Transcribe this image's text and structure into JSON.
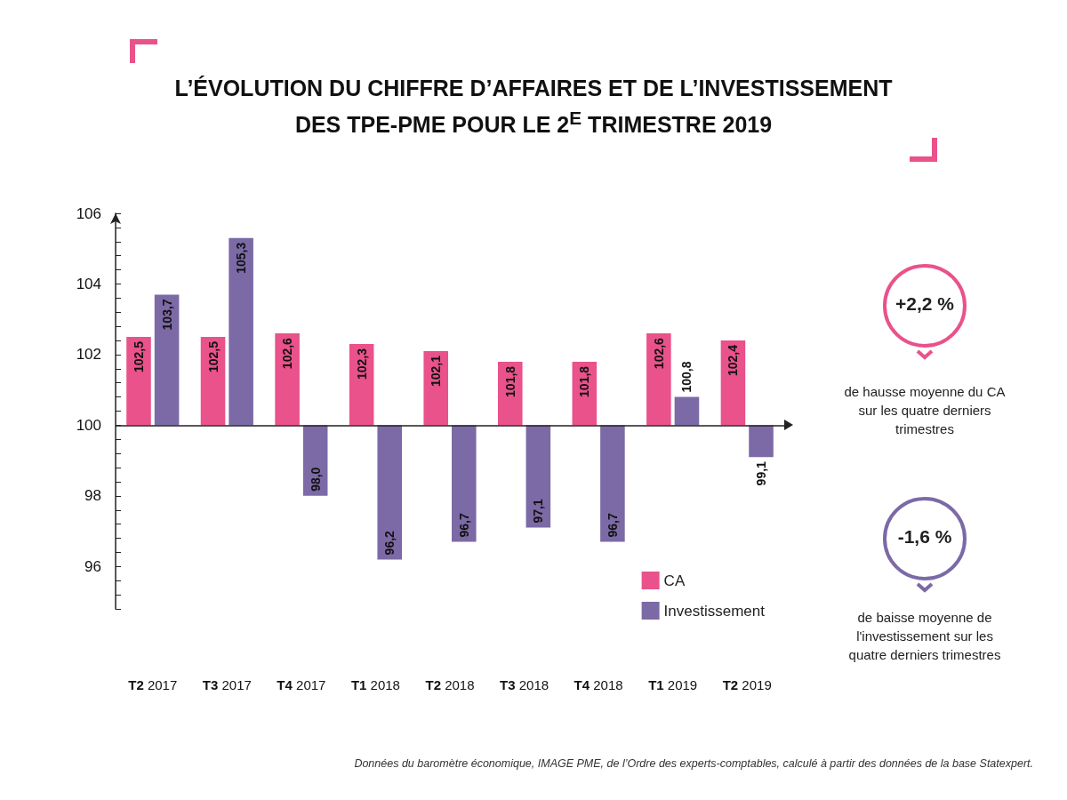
{
  "chart_data": {
    "type": "bar",
    "title": "L’ÉVOLUTION DU CHIFFRE D’AFFAIRES ET DE L’INVESTISSEMENT DES TPE-PME POUR LE 2$^{E}$ TRIMESTRE 2019",
    "categories": [
      "T2 2017",
      "T3 2017",
      "T4 2017",
      "T1 2018",
      "T2 2018",
      "T3 2018",
      "T4 2018",
      "T1 2019",
      "T2 2019"
    ],
    "series": [
      {
        "name": "CA",
        "color": "#e9528a",
        "base": [
          100,
          100,
          100,
          100,
          100,
          100,
          100,
          100,
          100
        ],
        "values": [
          2.5,
          2.5,
          2.6,
          2.3,
          2.1,
          1.8,
          1.8,
          2.6,
          2.4
        ],
        "value_labels": [
          "102,5",
          "102,5",
          "102,6",
          "102,3",
          "102,1",
          "101,8",
          "101,8",
          "102,6",
          "102,4"
        ]
      },
      {
        "name": "Investissement",
        "color": "#7b6aa6",
        "base": [
          100,
          100,
          100,
          100,
          100,
          100,
          100,
          100,
          100
        ],
        "values": [
          3.7,
          5.3,
          -2.0,
          -3.8,
          -3.3,
          -2.9,
          -3.3,
          0.8,
          -0.9
        ],
        "value_labels": [
          "103,7",
          "105,3",
          "98,0",
          "96,2",
          "96,7",
          "97,1",
          "96,7",
          "100,8",
          "99,1"
        ]
      }
    ],
    "ylim": [
      94.8,
      106
    ],
    "yticks": [
      {
        "value": 94.8,
        "label": null
      },
      {
        "value": 95.2,
        "label": null
      },
      {
        "value": 95.6,
        "label": null
      },
      96,
      {
        "value": 96.4,
        "label": null
      },
      {
        "value": 96.8,
        "label": null
      },
      {
        "value": 97.2,
        "label": null
      },
      {
        "value": 97.6,
        "label": null
      },
      98,
      {
        "value": 98.4,
        "label": null
      },
      {
        "value": 98.8,
        "label": null
      },
      {
        "value": 99.2,
        "label": null
      },
      {
        "value": 99.6,
        "label": null
      },
      100,
      {
        "value": 100.4,
        "label": null
      },
      {
        "value": 100.8,
        "label": null
      },
      {
        "value": 101.2,
        "label": null
      },
      {
        "value": 101.6,
        "label": null
      },
      102,
      {
        "value": 102.4,
        "label": null
      },
      {
        "value": 102.8,
        "label": null
      },
      {
        "value": 103.2,
        "label": null
      },
      {
        "value": 103.6,
        "label": null
      },
      104,
      {
        "value": 104.4,
        "label": null
      },
      {
        "value": 104.8,
        "label": null
      },
      {
        "value": 105.2,
        "label": null
      },
      {
        "value": 105.6,
        "label": null
      },
      106
    ],
    "ref_lines": [
      {
        "axis": "y",
        "value": 100,
        "label": null
      }
    ],
    "grid": false,
    "legend": "bottom right",
    "annotations": [
      "+2,2 %",
      "de hausse moyenne du CA sur les quatre derniers trimestres",
      "-1,6 %",
      "de baisse moyenne de l'investissement sur les quatre derniers trimestres",
      "Données du baromètre économique, IMAGE PME, de l’Ordre des experts-comptables, calculé à partir des données de la base Statexpert."
    ]
  }
}
